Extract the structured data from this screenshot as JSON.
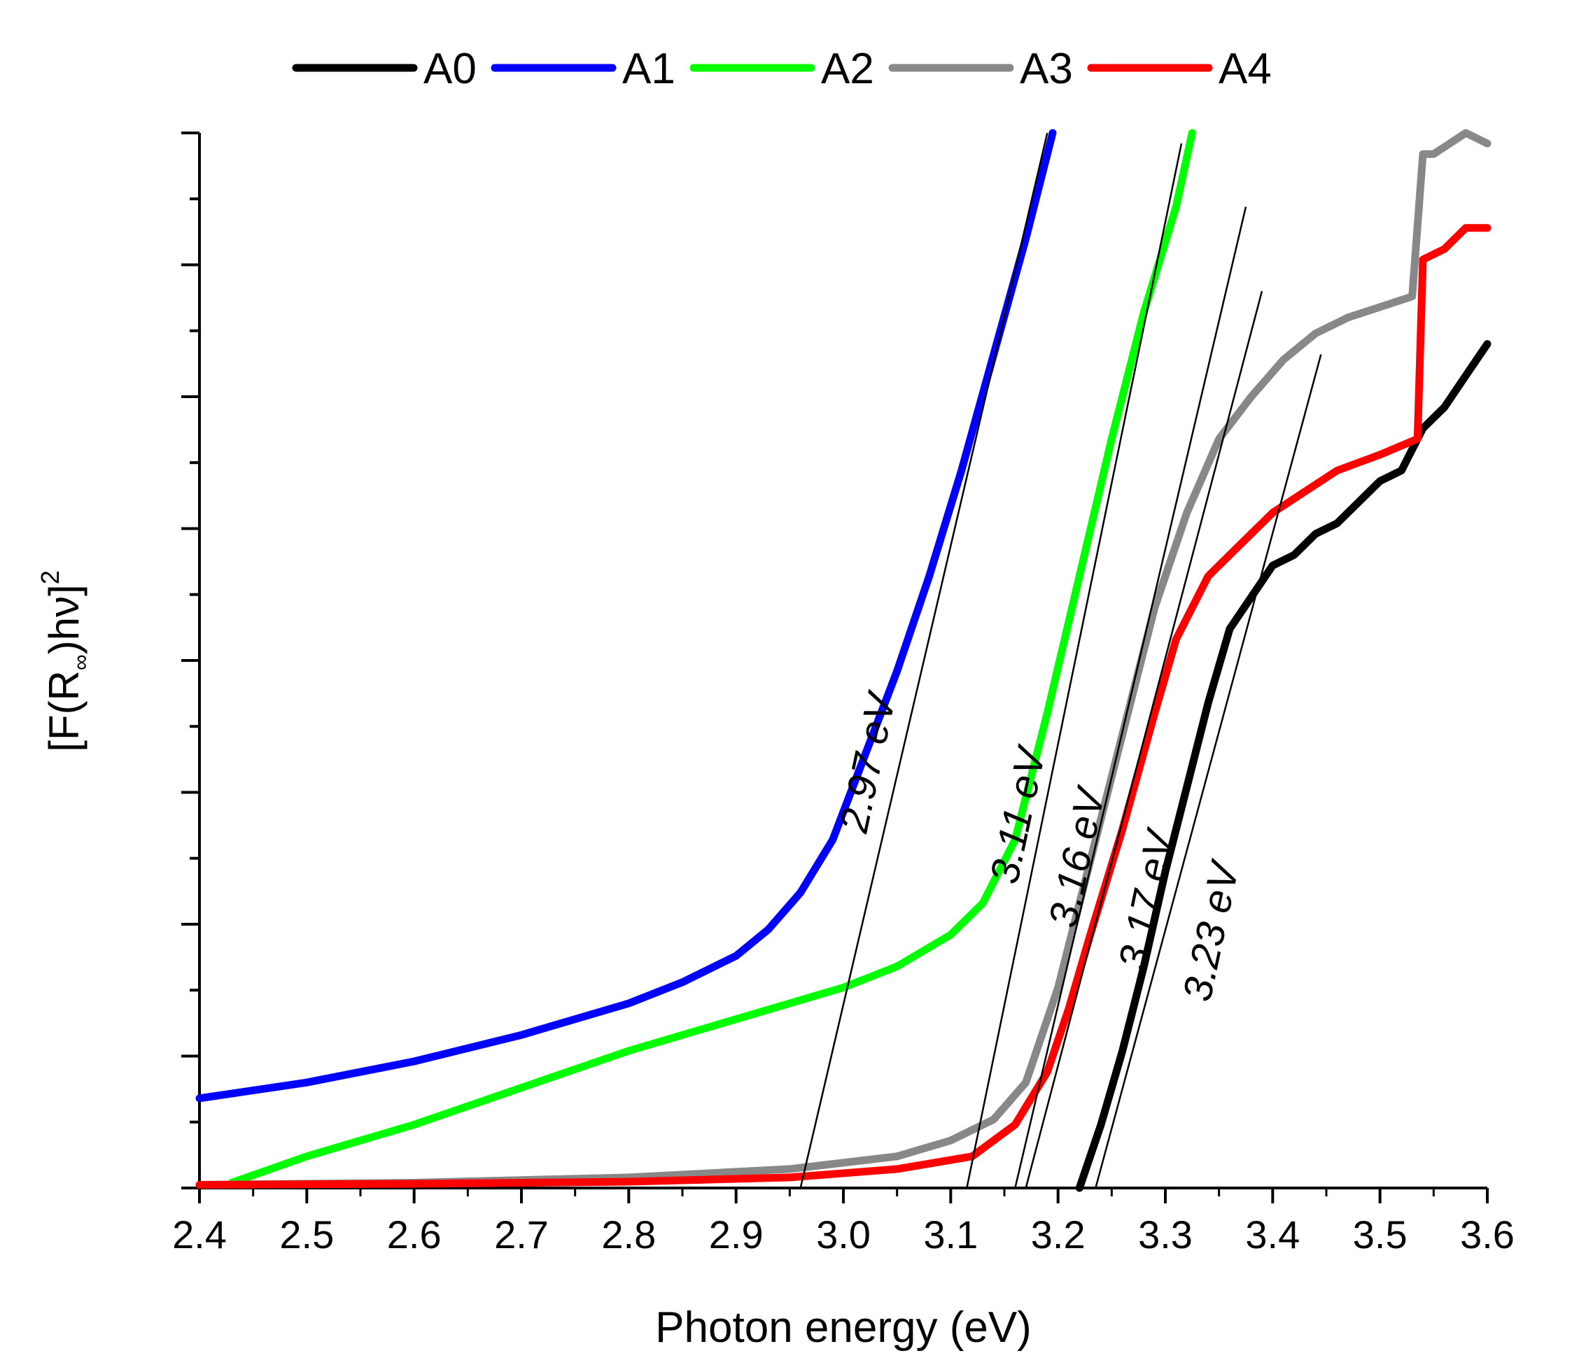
{
  "chart_data": {
    "type": "line",
    "title": "",
    "xlabel": "Photon energy (eV)",
    "ylabel": "[F(R∞)hν]²",
    "ylabel_parts": {
      "prefix": "[F(R",
      "subscript": "∞",
      "middle": ")hν]",
      "superscript": "2"
    },
    "xlim": [
      2.4,
      3.6
    ],
    "ylim": [
      0,
      100
    ],
    "x_ticks": [
      "2.4",
      "2.5",
      "2.6",
      "2.7",
      "2.8",
      "2.9",
      "3.0",
      "3.1",
      "3.2",
      "3.3",
      "3.4",
      "3.5",
      "3.6"
    ],
    "grid": false,
    "legend_position": "top",
    "series": [
      {
        "name": "A0",
        "color": "#000000",
        "x": [
          3.22,
          3.24,
          3.26,
          3.28,
          3.3,
          3.32,
          3.34,
          3.36,
          3.38,
          3.4,
          3.42,
          3.44,
          3.46,
          3.48,
          3.5,
          3.52,
          3.54,
          3.56,
          3.58,
          3.6
        ],
        "y": [
          0,
          6,
          13,
          21,
          30,
          38,
          46,
          53,
          56,
          59,
          60,
          62,
          63,
          65,
          67,
          68,
          72,
          74,
          77,
          80
        ]
      },
      {
        "name": "A1",
        "color": "#0000ff",
        "x": [
          2.4,
          2.5,
          2.6,
          2.7,
          2.8,
          2.85,
          2.9,
          2.93,
          2.96,
          2.99,
          3.02,
          3.05,
          3.08,
          3.11,
          3.14,
          3.17,
          3.195
        ],
        "y": [
          8.5,
          10,
          12,
          14.5,
          17.5,
          19.5,
          22,
          24.5,
          28,
          33,
          41,
          49,
          58,
          68,
          79,
          90,
          100
        ]
      },
      {
        "name": "A2",
        "color": "#00ff00",
        "x": [
          2.43,
          2.5,
          2.6,
          2.7,
          2.8,
          2.9,
          3.0,
          3.05,
          3.1,
          3.13,
          3.16,
          3.19,
          3.22,
          3.25,
          3.28,
          3.31,
          3.325
        ],
        "y": [
          0.5,
          3,
          6,
          9.5,
          13,
          16,
          19,
          21,
          24,
          27,
          33,
          45,
          58,
          71,
          83,
          93,
          100
        ]
      },
      {
        "name": "A3",
        "color": "#888888",
        "x": [
          2.4,
          2.6,
          2.8,
          2.95,
          3.05,
          3.1,
          3.14,
          3.17,
          3.2,
          3.23,
          3.26,
          3.29,
          3.32,
          3.35,
          3.38,
          3.41,
          3.44,
          3.47,
          3.5,
          3.53,
          3.54,
          3.55,
          3.58,
          3.6
        ],
        "y": [
          0.3,
          0.5,
          1,
          1.8,
          3,
          4.5,
          6.5,
          10,
          19,
          31,
          43,
          55,
          64,
          71,
          75,
          78.5,
          81,
          82.5,
          83.5,
          84.5,
          98,
          98,
          100,
          99
        ]
      },
      {
        "name": "A4",
        "color": "#ff0000",
        "x": [
          2.4,
          2.6,
          2.8,
          2.95,
          3.05,
          3.12,
          3.16,
          3.19,
          3.21,
          3.23,
          3.26,
          3.29,
          3.31,
          3.34,
          3.37,
          3.4,
          3.43,
          3.46,
          3.5,
          3.535,
          3.54,
          3.56,
          3.58,
          3.6
        ],
        "y": [
          0.3,
          0.4,
          0.6,
          1,
          1.8,
          3,
          6,
          11,
          17,
          24,
          34,
          45,
          52,
          58,
          61,
          64,
          66,
          68,
          69.5,
          71,
          88,
          89,
          91,
          91
        ]
      }
    ],
    "tangents": [
      {
        "x0": 2.96,
        "y0": 0,
        "x1": 3.19,
        "y1": 100
      },
      {
        "x0": 3.115,
        "y0": 0,
        "x1": 3.315,
        "y1": 99
      },
      {
        "x0": 3.16,
        "y0": 0,
        "x1": 3.375,
        "y1": 93
      },
      {
        "x0": 3.17,
        "y0": 0,
        "x1": 3.39,
        "y1": 85
      },
      {
        "x0": 3.235,
        "y0": 0,
        "x1": 3.445,
        "y1": 79
      }
    ],
    "annotations": [
      {
        "text": "2.97 eV",
        "x": 3.035,
        "y": 40,
        "angle": -78
      },
      {
        "text": "3.11 eV",
        "x": 3.175,
        "y": 35,
        "angle": -78
      },
      {
        "text": "3.16 eV",
        "x": 3.23,
        "y": 31,
        "angle": -78
      },
      {
        "text": "3.17 eV",
        "x": 3.295,
        "y": 27,
        "angle": -78
      },
      {
        "text": "3.23 eV",
        "x": 3.355,
        "y": 24,
        "angle": -78
      }
    ]
  }
}
